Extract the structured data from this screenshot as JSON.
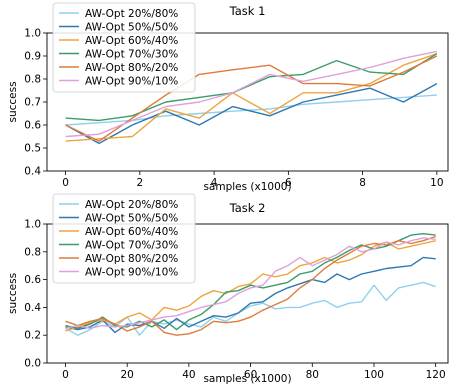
{
  "chart_data": [
    {
      "type": "line",
      "title": "Task 1",
      "xlabel": "samples (x1000)",
      "ylabel": "success",
      "xlim": [
        -0.5,
        10.3
      ],
      "ylim": [
        0.4,
        1.0
      ],
      "xticks": [
        0,
        2,
        4,
        6,
        8,
        10
      ],
      "yticks": [
        0.4,
        0.5,
        0.6,
        0.7,
        0.8,
        0.9,
        1.0
      ],
      "ytick_labels": [
        "0.4",
        "0.5",
        "0.6",
        "0.7",
        "0.8",
        "0.9",
        "1.0"
      ],
      "legend_position": "top-left",
      "grid": false,
      "x": [
        0,
        0.9,
        1.8,
        2.7,
        3.6,
        4.5,
        5.5,
        6.4,
        7.3,
        8.2,
        9.1,
        10
      ],
      "series": [
        {
          "name": "AW-Opt 20%/80%",
          "color": "#8fd1ec",
          "values": [
            0.6,
            0.61,
            0.62,
            0.64,
            0.65,
            0.66,
            0.67,
            0.69,
            0.7,
            0.71,
            0.72,
            0.73
          ]
        },
        {
          "name": "AW-Opt 50%/50%",
          "color": "#2f78b0",
          "values": [
            0.6,
            0.52,
            0.6,
            0.66,
            0.6,
            0.68,
            0.64,
            0.7,
            0.73,
            0.76,
            0.7,
            0.78
          ]
        },
        {
          "name": "AW-Opt 60%/40%",
          "color": "#eda53c",
          "values": [
            0.53,
            0.54,
            0.55,
            0.67,
            0.63,
            0.74,
            0.65,
            0.74,
            0.74,
            0.78,
            0.86,
            0.91
          ]
        },
        {
          "name": "AW-Opt 70%/30%",
          "color": "#3a9d69",
          "values": [
            0.63,
            0.62,
            0.64,
            0.7,
            0.72,
            0.74,
            0.81,
            0.82,
            0.88,
            0.83,
            0.82,
            0.91
          ]
        },
        {
          "name": "AW-Opt 80%/20%",
          "color": "#e07a3a",
          "values": [
            0.6,
            0.53,
            0.63,
            0.73,
            0.82,
            0.84,
            0.86,
            0.78,
            0.78,
            0.77,
            0.83,
            0.9
          ]
        },
        {
          "name": "AW-Opt 90%/10%",
          "color": "#dfa0dc",
          "values": [
            0.55,
            0.56,
            0.62,
            0.68,
            0.7,
            0.74,
            0.82,
            0.79,
            0.82,
            0.85,
            0.89,
            0.92
          ]
        }
      ]
    },
    {
      "type": "line",
      "title": "Task 2",
      "xlabel": "samples (x1000)",
      "ylabel": "success",
      "xlim": [
        -6,
        124
      ],
      "ylim": [
        0.0,
        1.0
      ],
      "xticks": [
        0,
        20,
        40,
        60,
        80,
        100,
        120
      ],
      "yticks": [
        0.0,
        0.2,
        0.4,
        0.6,
        0.8,
        1.0
      ],
      "ytick_labels": [
        "0.0",
        "0.2",
        "0.4",
        "0.6",
        "0.8",
        "1.0"
      ],
      "legend_position": "top-left",
      "grid": false,
      "x": [
        0,
        4,
        8,
        12,
        16,
        20,
        24,
        28,
        32,
        36,
        40,
        44,
        48,
        52,
        56,
        60,
        64,
        68,
        72,
        76,
        80,
        84,
        88,
        92,
        96,
        100,
        104,
        108,
        112,
        116,
        120
      ],
      "series": [
        {
          "name": "AW-Opt 20%/80%",
          "color": "#8fd1ec",
          "values": [
            0.25,
            0.2,
            0.24,
            0.3,
            0.26,
            0.33,
            0.2,
            0.3,
            0.28,
            0.31,
            0.28,
            0.26,
            0.33,
            0.3,
            0.36,
            0.41,
            0.43,
            0.39,
            0.4,
            0.4,
            0.43,
            0.45,
            0.4,
            0.43,
            0.44,
            0.56,
            0.45,
            0.54,
            0.56,
            0.58,
            0.55
          ]
        },
        {
          "name": "AW-Opt 50%/50%",
          "color": "#2f78b0",
          "values": [
            0.26,
            0.24,
            0.26,
            0.31,
            0.22,
            0.28,
            0.27,
            0.3,
            0.25,
            0.32,
            0.26,
            0.3,
            0.34,
            0.33,
            0.36,
            0.43,
            0.44,
            0.5,
            0.54,
            0.57,
            0.6,
            0.58,
            0.64,
            0.6,
            0.64,
            0.66,
            0.68,
            0.69,
            0.7,
            0.76,
            0.75
          ]
        },
        {
          "name": "AW-Opt 60%/40%",
          "color": "#eda53c",
          "values": [
            0.23,
            0.26,
            0.29,
            0.31,
            0.28,
            0.33,
            0.36,
            0.31,
            0.4,
            0.38,
            0.41,
            0.48,
            0.52,
            0.5,
            0.55,
            0.57,
            0.64,
            0.62,
            0.64,
            0.7,
            0.72,
            0.76,
            0.72,
            0.74,
            0.78,
            0.84,
            0.87,
            0.82,
            0.84,
            0.86,
            0.88
          ]
        },
        {
          "name": "AW-Opt 70%/30%",
          "color": "#3a9d69",
          "values": [
            0.27,
            0.25,
            0.28,
            0.33,
            0.27,
            0.26,
            0.3,
            0.26,
            0.31,
            0.24,
            0.31,
            0.35,
            0.42,
            0.51,
            0.52,
            0.56,
            0.54,
            0.56,
            0.58,
            0.64,
            0.66,
            0.72,
            0.76,
            0.81,
            0.85,
            0.82,
            0.84,
            0.88,
            0.92,
            0.93,
            0.92
          ]
        },
        {
          "name": "AW-Opt 80%/20%",
          "color": "#e07a3a",
          "values": [
            0.3,
            0.27,
            0.3,
            0.32,
            0.28,
            0.23,
            0.26,
            0.3,
            0.22,
            0.2,
            0.21,
            0.24,
            0.3,
            0.29,
            0.3,
            0.33,
            0.38,
            0.42,
            0.46,
            0.54,
            0.6,
            0.68,
            0.74,
            0.79,
            0.84,
            0.86,
            0.85,
            0.88,
            0.86,
            0.88,
            0.91
          ]
        },
        {
          "name": "AW-Opt 90%/10%",
          "color": "#dfa0dc",
          "values": [
            0.25,
            0.27,
            0.25,
            0.27,
            0.26,
            0.27,
            0.29,
            0.31,
            0.33,
            0.34,
            0.37,
            0.4,
            0.42,
            0.44,
            0.5,
            0.54,
            0.56,
            0.66,
            0.7,
            0.76,
            0.7,
            0.74,
            0.78,
            0.84,
            0.8,
            0.82,
            0.87,
            0.85,
            0.88,
            0.9,
            0.89
          ]
        }
      ]
    }
  ]
}
